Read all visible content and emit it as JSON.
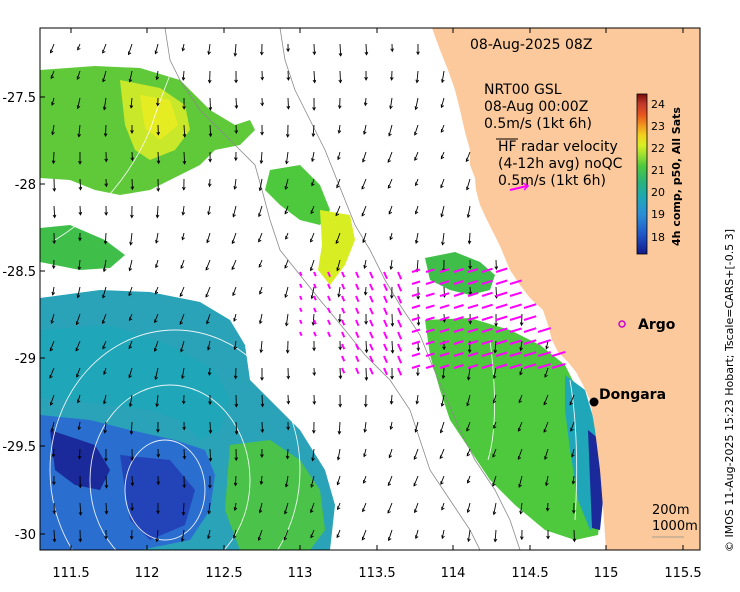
{
  "map": {
    "timestamp": "08-Aug-2025 08Z",
    "model_block": {
      "line1": "NRT00 GSL",
      "line2": "08-Aug 00:00Z",
      "line3": "0.5m/s (1kt 6h)"
    },
    "hf_block": {
      "line1": "HF radar velocity",
      "line2": "(4-12h avg) noQC",
      "line3": "0.5m/s (1kt 6h)"
    },
    "colorbar": {
      "title": "4h comp, p50, All Sats",
      "ticks": [
        "24",
        "23",
        "22",
        "21",
        "20",
        "19",
        "18"
      ],
      "colors": [
        "#7a0a0a",
        "#c0392b",
        "#e8551e",
        "#f29a1e",
        "#f2d21e",
        "#d8ee22",
        "#9ee031",
        "#4ec93d",
        "#2ab37a",
        "#1fa6b8",
        "#2a8fd6",
        "#1f56c7",
        "#131a8a"
      ]
    },
    "x_ticks": [
      "111.5",
      "112",
      "112.5",
      "113",
      "113.5",
      "114",
      "114.5",
      "115",
      "115.5"
    ],
    "y_ticks": [
      "-27.5",
      "-28",
      "-28.5",
      "-29",
      "-29.5",
      "-30"
    ],
    "places": {
      "argo": "Argo",
      "dongara": "Dongara"
    },
    "isobaths": {
      "a": "200m",
      "b": "1000m"
    },
    "credit": "© IMOS 11-Aug-2025 15:23 Hobart; Tscale=CARS+[-0.5 3]",
    "colors": {
      "land": "#fbc99b",
      "hf_arrow": "#ff00ff",
      "argo_marker": "#cc00cc"
    }
  }
}
